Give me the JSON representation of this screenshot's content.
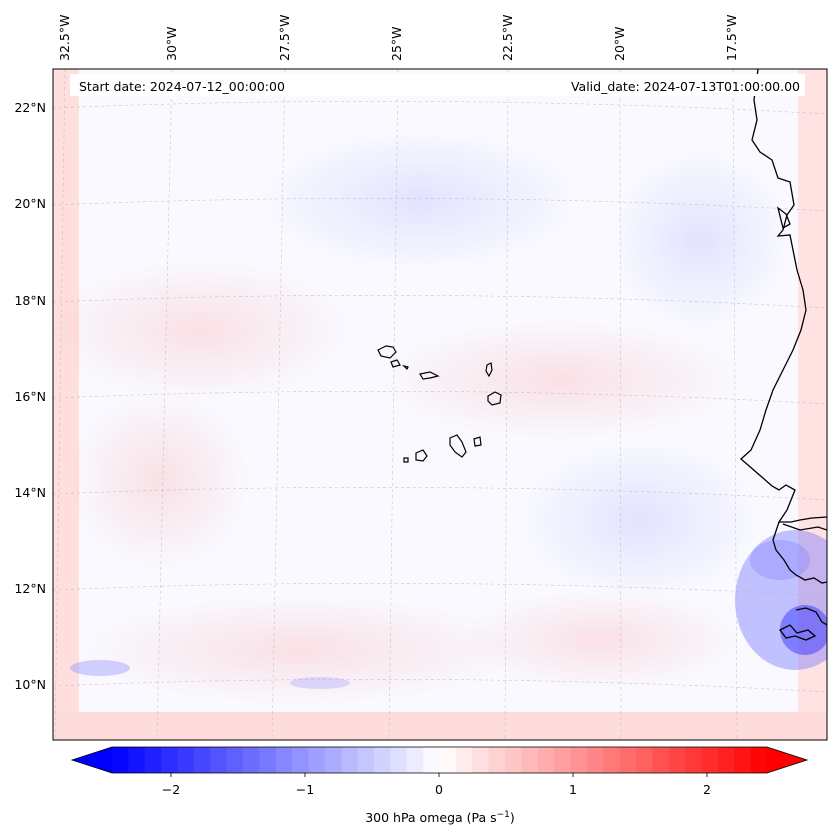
{
  "map": {
    "projection_note": "Lambert conformal style map",
    "lon_labels": [
      "32.5°W",
      "30°W",
      "27.5°W",
      "25°W",
      "22.5°W",
      "20°W",
      "17.5°W"
    ],
    "lat_labels": [
      "22°N",
      "20°N",
      "18°N",
      "16°N",
      "14°N",
      "12°N",
      "10°N"
    ],
    "start_date_text": "Start date: 2024-07-12_00:00:00",
    "valid_date_text": "Valid_date: 2024-07-13T01:00:00.00",
    "features": [
      "Cape Verde islands",
      "West African coastline"
    ]
  },
  "colorbar": {
    "label_text": "300 hPa omega (Pa s",
    "label_exponent": "−1",
    "label_close": ")",
    "ticks": [
      "−2",
      "−1",
      "0",
      "1",
      "2"
    ],
    "range": [
      -2.6,
      2.6
    ],
    "colormap": "bwr",
    "colors": {
      "negative": "#0000ff",
      "zero": "#ffffff",
      "positive": "#ff0000"
    }
  }
}
